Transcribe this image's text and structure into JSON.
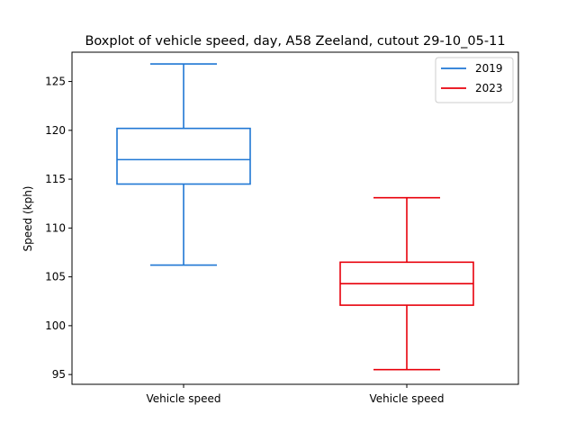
{
  "chart_data": {
    "type": "boxplot",
    "title": "Boxplot of vehicle speed, day, A58 Zeeland, cutout 29-10_05-11",
    "xlabel": "",
    "ylabel": "Speed (kph)",
    "ylim": [
      94,
      128
    ],
    "yticks": [
      95,
      100,
      105,
      110,
      115,
      120,
      125
    ],
    "grid": false,
    "legend_position": "top-right",
    "series": [
      {
        "name": "2019",
        "category": "Vehicle speed",
        "color": "#1f77d4",
        "whisker_low": 106.2,
        "q1": 114.5,
        "median": 117.0,
        "q3": 120.2,
        "whisker_high": 126.8
      },
      {
        "name": "2023",
        "category": "Vehicle speed",
        "color": "#e8000b",
        "whisker_low": 95.5,
        "q1": 102.1,
        "median": 104.3,
        "q3": 106.5,
        "whisker_high": 113.1
      }
    ]
  }
}
